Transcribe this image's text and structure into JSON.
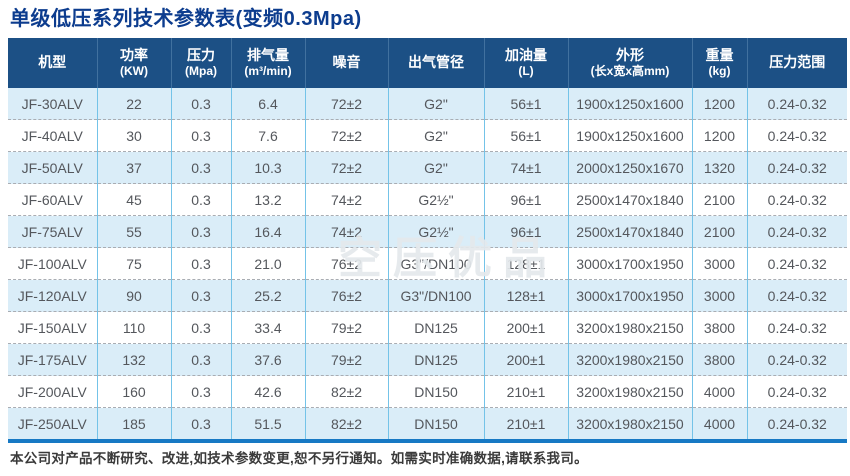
{
  "page": {
    "title": "单级低压系列技术参数表(变频0.3Mpa)",
    "footer_note": "本公司对产品不断研究、改进,如技术参数变更,恕不另行通知。如需实时准确数据,请联系我司。",
    "watermark": "空压优品"
  },
  "colors": {
    "title_blue": "#0c3c8e",
    "header_bg": "#1c5085",
    "row_alt_bg": "#daedf8",
    "column_divider": "#74c3e8",
    "bottom_border": "#1779c4",
    "cell_text": "#54575c"
  },
  "table": {
    "columns": [
      {
        "label": "机型",
        "sub": ""
      },
      {
        "label": "功率",
        "sub": "(KW)"
      },
      {
        "label": "压力",
        "sub": "(Mpa)"
      },
      {
        "label": "排气量",
        "sub": "(m³/min)"
      },
      {
        "label": "噪音",
        "sub": ""
      },
      {
        "label": "出气管径",
        "sub": ""
      },
      {
        "label": "加油量",
        "sub": "(L)"
      },
      {
        "label": "外形",
        "sub": "(长x宽x高mm)"
      },
      {
        "label": "重量",
        "sub": "(kg)"
      },
      {
        "label": "压力范围",
        "sub": ""
      }
    ],
    "rows": [
      [
        "JF-30ALV",
        "22",
        "0.3",
        "6.4",
        "72±2",
        "G2\"",
        "56±1",
        "1900x1250x1600",
        "1200",
        "0.24-0.32"
      ],
      [
        "JF-40ALV",
        "30",
        "0.3",
        "7.6",
        "72±2",
        "G2\"",
        "56±1",
        "1900x1250x1600",
        "1200",
        "0.24-0.32"
      ],
      [
        "JF-50ALV",
        "37",
        "0.3",
        "10.3",
        "72±2",
        "G2\"",
        "74±1",
        "2000x1250x1670",
        "1320",
        "0.24-0.32"
      ],
      [
        "JF-60ALV",
        "45",
        "0.3",
        "13.2",
        "74±2",
        "G2½\"",
        "96±1",
        "2500x1470x1840",
        "2100",
        "0.24-0.32"
      ],
      [
        "JF-75ALV",
        "55",
        "0.3",
        "16.4",
        "74±2",
        "G2½\"",
        "96±1",
        "2500x1470x1840",
        "2100",
        "0.24-0.32"
      ],
      [
        "JF-100ALV",
        "75",
        "0.3",
        "21.0",
        "76±2",
        "G3\"/DN100",
        "128±1",
        "3000x1700x1950",
        "3000",
        "0.24-0.32"
      ],
      [
        "JF-120ALV",
        "90",
        "0.3",
        "25.2",
        "76±2",
        "G3\"/DN100",
        "128±1",
        "3000x1700x1950",
        "3000",
        "0.24-0.32"
      ],
      [
        "JF-150ALV",
        "110",
        "0.3",
        "33.4",
        "79±2",
        "DN125",
        "200±1",
        "3200x1980x2150",
        "3800",
        "0.24-0.32"
      ],
      [
        "JF-175ALV",
        "132",
        "0.3",
        "37.6",
        "79±2",
        "DN125",
        "200±1",
        "3200x1980x2150",
        "3800",
        "0.24-0.32"
      ],
      [
        "JF-200ALV",
        "160",
        "0.3",
        "42.6",
        "82±2",
        "DN150",
        "210±1",
        "3200x1980x2150",
        "4000",
        "0.24-0.32"
      ],
      [
        "JF-250ALV",
        "185",
        "0.3",
        "51.5",
        "82±2",
        "DN150",
        "210±1",
        "3200x1980x2150",
        "4000",
        "0.24-0.32"
      ]
    ]
  }
}
